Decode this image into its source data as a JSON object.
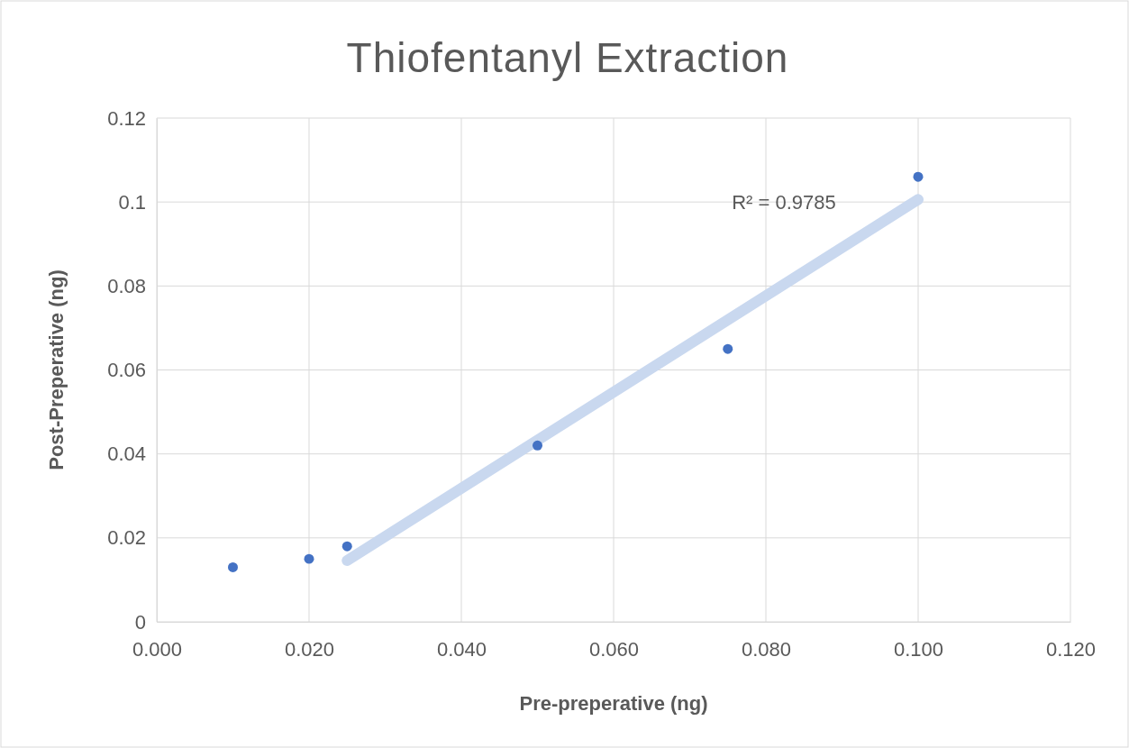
{
  "chart_data": {
    "type": "scatter",
    "title": "Thiofentanyl Extraction",
    "xlabel": "Pre-preperative (ng)",
    "ylabel": "Post-Preperative (ng)",
    "series": [
      {
        "color": "#4472c4",
        "x": [
          0.01,
          0.02,
          0.025,
          0.05,
          0.075,
          0.1
        ],
        "values": [
          0.013,
          0.015,
          0.018,
          0.042,
          0.065,
          0.106
        ],
        "marker": "circle"
      },
      {
        "type": "line",
        "color": "#c9d8ef",
        "x": [
          0.025,
          0.1
        ],
        "values": [
          0.0146,
          0.1006
        ],
        "marker": "none",
        "line_style": "solid"
      }
    ],
    "annotations": [
      "R² = 0.9785"
    ],
    "xlim": [
      0,
      0.12
    ],
    "xticks": [
      {
        "value": 0,
        "label": "0.000"
      },
      {
        "value": 0.02,
        "label": "0.020"
      },
      {
        "value": 0.04,
        "label": "0.040"
      },
      {
        "value": 0.06,
        "label": "0.060"
      },
      {
        "value": 0.08,
        "label": "0.080"
      },
      {
        "value": 0.1,
        "label": "0.100"
      },
      {
        "value": 0.12,
        "label": "0.120"
      }
    ],
    "ylim": [
      0,
      0.12
    ],
    "yticks": [
      0,
      0.02,
      0.04,
      0.06,
      0.08,
      0.1,
      0.12
    ],
    "grid": true
  }
}
